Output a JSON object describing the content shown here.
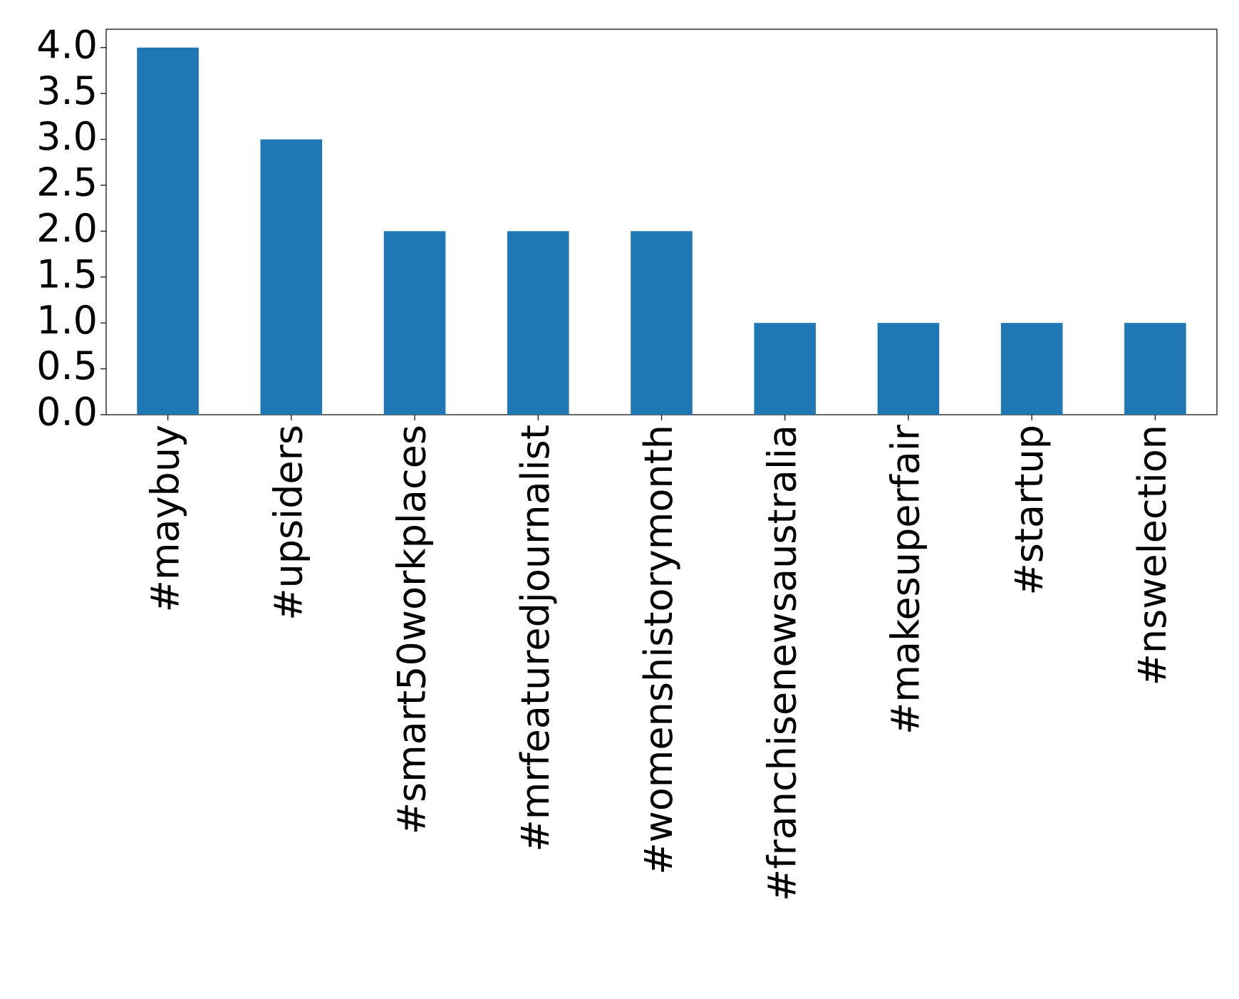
{
  "chart_data": {
    "type": "bar",
    "categories": [
      "#maybuy",
      "#upsiders",
      "#smart50workplaces",
      "#mrfeaturedjournalist",
      "#womenshistorymonth",
      "#franchisenewsaustralia",
      "#makesuperfair",
      "#startup",
      "#nswelection"
    ],
    "values": [
      4,
      3,
      2,
      2,
      2,
      1,
      1,
      1,
      1
    ],
    "color": "#1f77b4",
    "ylim": [
      0,
      4.2
    ],
    "yticks": [
      {
        "value": 0,
        "label": "0.0"
      },
      0.5,
      {
        "value": 1,
        "label": "1.0"
      },
      1.5,
      {
        "value": 2,
        "label": "2.0"
      },
      2.5,
      {
        "value": 3,
        "label": "3.0"
      },
      3.5,
      {
        "value": 4,
        "label": "4.0"
      }
    ],
    "grid": false
  }
}
